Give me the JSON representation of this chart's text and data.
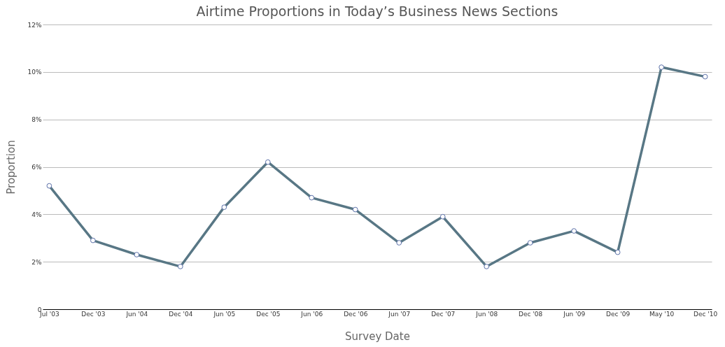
{
  "chart_data": {
    "type": "line",
    "title": "Airtime Proportions in Today’s Business News Sections",
    "xlabel": "Survey Date",
    "ylabel": "Proportion",
    "categories": [
      "Jul '03",
      "Dec '03",
      "Jun '04",
      "Dec '04",
      "Jun '05",
      "Dec '05",
      "Jun '06",
      "Dec '06",
      "Jun '07",
      "Dec '07",
      "Jun '08",
      "Dec '08",
      "Jun '09",
      "Dec '09",
      "May '10",
      "Dec '10"
    ],
    "series": [
      {
        "color": "#587785",
        "values": [
          5.2,
          2.9,
          2.3,
          1.8,
          4.3,
          6.2,
          4.7,
          4.2,
          2.8,
          3.9,
          1.8,
          2.8,
          3.3,
          2.4,
          10.2,
          9.8
        ]
      }
    ],
    "ylim": [
      0,
      12
    ],
    "yticks": [
      0,
      {
        "value": 2,
        "label": "2%"
      },
      {
        "value": 4,
        "label": "4%"
      },
      {
        "value": 6,
        "label": "6%"
      },
      {
        "value": 8,
        "label": "8%"
      },
      {
        "value": 10,
        "label": "10%"
      },
      {
        "value": 12,
        "label": "12%"
      }
    ],
    "grid": "y",
    "marker": "circle",
    "line_style": "solid"
  }
}
